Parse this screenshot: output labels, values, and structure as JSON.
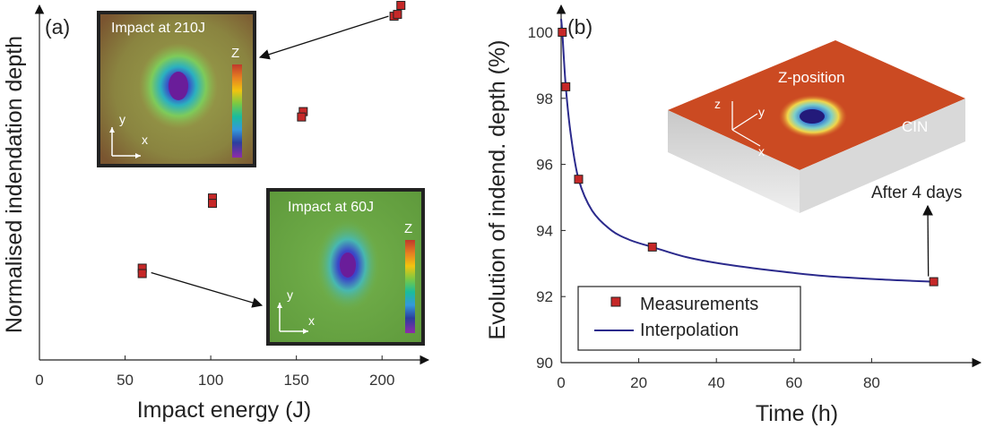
{
  "panels": {
    "a": {
      "label": "(a)"
    },
    "b": {
      "label": "(b)"
    }
  },
  "chart_data": [
    {
      "type": "scatter",
      "panel": "(a)",
      "xlabel": "Impact energy (J)",
      "ylabel": "Normalised indendation depth",
      "xlim": [
        0,
        225
      ],
      "xticks": [
        0,
        50,
        100,
        150,
        200
      ],
      "y_tick_labels": "none",
      "series": [
        {
          "name": "",
          "marker": "square",
          "color": "#c62828",
          "points": [
            {
              "x": 60,
              "y": 0.255
            },
            {
              "x": 60,
              "y": 0.24
            },
            {
              "x": 101,
              "y": 0.45
            },
            {
              "x": 101,
              "y": 0.435
            },
            {
              "x": 154,
              "y": 0.69
            },
            {
              "x": 153,
              "y": 0.675
            },
            {
              "x": 207,
              "y": 0.955
            },
            {
              "x": 209,
              "y": 0.96
            },
            {
              "x": 211,
              "y": 0.985
            }
          ]
        }
      ],
      "annotations": [
        {
          "text": "Impact at 210J",
          "points_to": {
            "x": 209,
            "y": 0.96
          }
        },
        {
          "text": "Impact at 60J",
          "points_from": {
            "x": 60,
            "y": 0.255
          }
        }
      ],
      "insets": [
        {
          "title": "Impact at 210J",
          "scale_label": "Z",
          "axis_x": "x",
          "axis_y": "y"
        },
        {
          "title": "Impact at 60J",
          "scale_label": "Z",
          "axis_x": "x",
          "axis_y": "y"
        }
      ]
    },
    {
      "type": "line",
      "panel": "(b)",
      "xlabel": "Time (h)",
      "ylabel": "Evolution of indend. depth (%)",
      "xlim": [
        0,
        100
      ],
      "ylim": [
        90,
        100.8
      ],
      "xticks": [
        0,
        20,
        40,
        60,
        80
      ],
      "yticks": [
        90,
        92,
        94,
        96,
        98,
        100
      ],
      "legend": {
        "placement": "bottom-left",
        "entries": [
          "Measurements",
          "Interpolation"
        ]
      },
      "series": [
        {
          "name": "Measurements",
          "marker": "square",
          "color": "#c62828",
          "points": [
            {
              "x": 0.3,
              "y": 100.0
            },
            {
              "x": 1.2,
              "y": 98.35
            },
            {
              "x": 4.5,
              "y": 95.55
            },
            {
              "x": 23.5,
              "y": 93.5
            },
            {
              "x": 96,
              "y": 92.45
            }
          ]
        },
        {
          "name": "Interpolation",
          "style": "line",
          "color": "#2b2a8c",
          "points": [
            {
              "x": 0,
              "y": 100.4
            },
            {
              "x": 0.3,
              "y": 100.0
            },
            {
              "x": 1.2,
              "y": 98.35
            },
            {
              "x": 2.5,
              "y": 96.9
            },
            {
              "x": 4.5,
              "y": 95.55
            },
            {
              "x": 8,
              "y": 94.6
            },
            {
              "x": 13,
              "y": 94.0
            },
            {
              "x": 18,
              "y": 93.7
            },
            {
              "x": 23.5,
              "y": 93.5
            },
            {
              "x": 32,
              "y": 93.2
            },
            {
              "x": 42,
              "y": 92.98
            },
            {
              "x": 55,
              "y": 92.78
            },
            {
              "x": 68,
              "y": 92.62
            },
            {
              "x": 82,
              "y": 92.52
            },
            {
              "x": 96,
              "y": 92.45
            }
          ]
        }
      ],
      "annotations": [
        {
          "text": "After 4 days",
          "points_to": {
            "x": 96,
            "y": 92.45
          }
        }
      ],
      "inset": {
        "labels": [
          "Z-position",
          "CIN"
        ],
        "axis_x": "x",
        "axis_y": "y",
        "axis_z": "z"
      }
    }
  ]
}
